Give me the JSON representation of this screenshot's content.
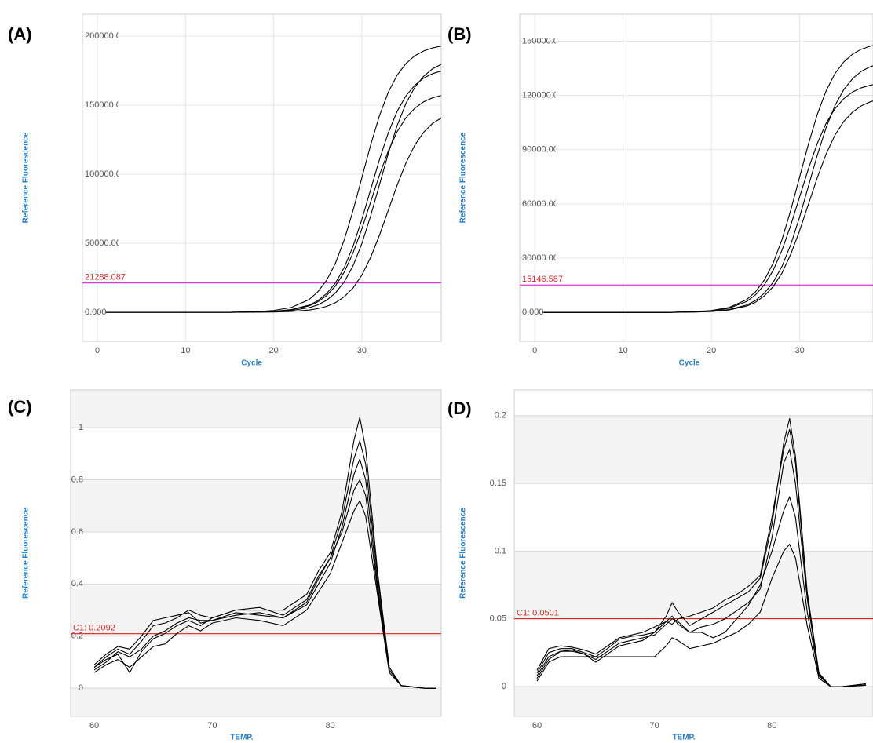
{
  "chart_data": [
    {
      "type": "line",
      "panel_label": "(A)",
      "y_label": "Reference Fluorescence",
      "x_label": "Cycle",
      "x": [
        1,
        5,
        10,
        15,
        18,
        20,
        22,
        24,
        25,
        26,
        27,
        28,
        29,
        30,
        31,
        32,
        33,
        34,
        35,
        36,
        37,
        38,
        39
      ],
      "series": [
        {
          "color": "#000000",
          "values": [
            0,
            0,
            0,
            0,
            500,
            1300,
            3500,
            9200,
            14800,
            23200,
            35500,
            52500,
            73700,
            97500,
            121300,
            142500,
            159500,
            171800,
            180200,
            185800,
            189300,
            191500,
            192900
          ]
        },
        {
          "color": "#000000",
          "values": [
            0,
            0,
            0,
            0,
            270,
            720,
            1960,
            5160,
            8370,
            13530,
            21180,
            32400,
            47880,
            67280,
            89000,
            110720,
            130120,
            145600,
            156820,
            164470,
            169630,
            172840,
            174800
          ]
        },
        {
          "color": "#000000",
          "values": [
            0,
            0,
            0,
            0,
            240,
            640,
            1760,
            4640,
            7520,
            12160,
            19040,
            29120,
            43040,
            60480,
            80000,
            99520,
            116960,
            130880,
            140960,
            147840,
            152480,
            155360,
            157120
          ]
        },
        {
          "color": "#000000",
          "values": [
            0,
            0,
            0,
            0,
            170,
            460,
            1240,
            3330,
            5370,
            8700,
            14060,
            22020,
            33670,
            49770,
            69930,
            92500,
            115070,
            135240,
            151330,
            162990,
            170940,
            176310,
            179640
          ]
        },
        {
          "color": "#000000",
          "values": [
            0,
            0,
            0,
            0,
            80,
            220,
            590,
            1630,
            2660,
            4290,
            6960,
            11250,
            17610,
            26940,
            39810,
            55940,
            74000,
            92060,
            108190,
            121060,
            130390,
            136750,
            140690
          ]
        }
      ],
      "xlim": [
        -1.7,
        39
      ],
      "xticks": [
        0,
        10,
        20,
        30
      ],
      "ylim": [
        -21000,
        216000
      ],
      "yticks": [
        {
          "value": 0,
          "label": "0.000"
        },
        {
          "value": 50000,
          "label": "50000.000"
        },
        {
          "value": 100000,
          "label": "100000.000"
        },
        {
          "value": 150000,
          "label": "150000.000"
        },
        {
          "value": 200000,
          "label": "200000.000"
        }
      ],
      "threshold": 21288.087,
      "threshold_color": "#d040d0",
      "grid": true,
      "bands": false
    },
    {
      "type": "line",
      "panel_label": "(B)",
      "y_label": "Reference Fluorescence",
      "x_label": "Cycle",
      "x": [
        1,
        5,
        10,
        15,
        18,
        20,
        22,
        24,
        25,
        26,
        27,
        28,
        29,
        30,
        31,
        32,
        33,
        34,
        35,
        36,
        37,
        38,
        39
      ],
      "series": [
        {
          "color": "#000000",
          "values": [
            0,
            0,
            0,
            0,
            380,
            1000,
            2700,
            7050,
            11400,
            17850,
            27300,
            40350,
            56700,
            75000,
            93300,
            109650,
            122700,
            132150,
            138600,
            142950,
            145650,
            147300,
            148350
          ]
        },
        {
          "color": "#000000",
          "values": [
            0,
            0,
            0,
            0,
            320,
            860,
            2300,
            6020,
            9730,
            15230,
            23300,
            34430,
            48380,
            64000,
            79620,
            93570,
            104700,
            112770,
            118270,
            121980,
            124290,
            125700,
            126590
          ]
        },
        {
          "color": "#000000",
          "values": [
            0,
            0,
            0,
            0,
            210,
            560,
            1540,
            4060,
            6580,
            10640,
            16660,
            25480,
            37660,
            52920,
            70000,
            87080,
            102340,
            114520,
            123340,
            129360,
            133420,
            135940,
            137480
          ]
        },
        {
          "color": "#000000",
          "values": [
            0,
            0,
            0,
            0,
            180,
            480,
            1320,
            3480,
            5640,
            9120,
            14280,
            21840,
            32280,
            45360,
            60000,
            74640,
            87720,
            98160,
            105720,
            110880,
            114360,
            116520,
            117840
          ]
        }
      ],
      "xlim": [
        -1.7,
        38.3
      ],
      "xticks": [
        0,
        10,
        20,
        30
      ],
      "ylim": [
        -16000,
        165000
      ],
      "yticks": [
        {
          "value": 0,
          "label": "0.000"
        },
        {
          "value": 30000,
          "label": "30000.000"
        },
        {
          "value": 60000,
          "label": "60000.000"
        },
        {
          "value": 90000,
          "label": "90000.000"
        },
        {
          "value": 120000,
          "label": "120000.000"
        },
        {
          "value": 150000,
          "label": "150000.000"
        }
      ],
      "threshold": 15146.587,
      "threshold_color": "#d040d0",
      "grid": true,
      "bands": false
    },
    {
      "type": "line",
      "panel_label": "(C)",
      "y_label": "Reference Fluorescence",
      "x_label": "TEMP.",
      "x": [
        60,
        61,
        62,
        63,
        64,
        65,
        66,
        67,
        68,
        69,
        70,
        72,
        74,
        76,
        78,
        79,
        80,
        81,
        82,
        82.5,
        83,
        84,
        85,
        86,
        88,
        89
      ],
      "series": [
        {
          "color": "#000000",
          "values": [
            0.08,
            0.12,
            0.15,
            0.13,
            0.18,
            0.24,
            0.25,
            0.27,
            0.3,
            0.28,
            0.27,
            0.3,
            0.3,
            0.3,
            0.36,
            0.45,
            0.52,
            0.68,
            0.95,
            1.04,
            0.92,
            0.45,
            0.08,
            0.01,
            0,
            0
          ]
        },
        {
          "color": "#000000",
          "values": [
            0.07,
            0.1,
            0.14,
            0.12,
            0.15,
            0.2,
            0.22,
            0.25,
            0.27,
            0.26,
            0.26,
            0.28,
            0.29,
            0.27,
            0.32,
            0.4,
            0.48,
            0.62,
            0.82,
            0.88,
            0.8,
            0.4,
            0.07,
            0.01,
            0,
            0
          ]
        },
        {
          "color": "#000000",
          "values": [
            0.06,
            0.09,
            0.11,
            0.08,
            0.12,
            0.16,
            0.17,
            0.21,
            0.24,
            0.22,
            0.25,
            0.27,
            0.26,
            0.24,
            0.3,
            0.37,
            0.44,
            0.56,
            0.68,
            0.72,
            0.66,
            0.36,
            0.06,
            0.01,
            0,
            0
          ]
        },
        {
          "color": "#000000",
          "values": [
            0.09,
            0.13,
            0.16,
            0.15,
            0.2,
            0.26,
            0.27,
            0.28,
            0.29,
            0.25,
            0.26,
            0.29,
            0.28,
            0.27,
            0.33,
            0.42,
            0.5,
            0.6,
            0.76,
            0.8,
            0.74,
            0.38,
            0.07,
            0.01,
            0,
            0
          ]
        },
        {
          "color": "#000000",
          "values": [
            0.08,
            0.11,
            0.13,
            0.06,
            0.14,
            0.19,
            0.21,
            0.24,
            0.26,
            0.24,
            0.27,
            0.3,
            0.31,
            0.28,
            0.34,
            0.43,
            0.5,
            0.65,
            0.88,
            0.95,
            0.86,
            0.43,
            0.08,
            0.01,
            0,
            0
          ]
        }
      ],
      "xlim": [
        58,
        89.4
      ],
      "xticks": [
        60,
        70,
        80
      ],
      "ylim": [
        -0.108,
        1.145
      ],
      "yticks": [
        0,
        0.2,
        0.4,
        0.6,
        0.8,
        1
      ],
      "threshold": {
        "value": 0.2092,
        "label": "C1: 0.2092"
      },
      "threshold_color": "#e02020",
      "grid": true,
      "bands": true
    },
    {
      "type": "line",
      "panel_label": "(D)",
      "y_label": "Reference Fluorescence",
      "x_label": "TEMP.",
      "x": [
        60,
        61,
        62,
        63,
        64,
        65,
        66,
        67,
        68,
        69,
        70,
        71,
        71.5,
        72,
        73,
        74,
        75,
        76,
        77,
        78,
        79,
        80,
        81,
        81.5,
        82,
        83,
        84,
        85,
        86,
        88
      ],
      "series": [
        {
          "color": "#000000",
          "values": [
            0.01,
            0.025,
            0.028,
            0.028,
            0.025,
            0.022,
            0.028,
            0.035,
            0.037,
            0.038,
            0.04,
            0.052,
            0.062,
            0.055,
            0.045,
            0.05,
            0.055,
            0.06,
            0.065,
            0.07,
            0.08,
            0.12,
            0.18,
            0.198,
            0.17,
            0.07,
            0.01,
            0,
            0,
            0.002
          ]
        },
        {
          "color": "#000000",
          "values": [
            0.008,
            0.022,
            0.026,
            0.027,
            0.024,
            0.02,
            0.026,
            0.032,
            0.034,
            0.036,
            0.038,
            0.046,
            0.05,
            0.048,
            0.04,
            0.044,
            0.046,
            0.05,
            0.056,
            0.062,
            0.072,
            0.11,
            0.165,
            0.175,
            0.15,
            0.065,
            0.008,
            0,
            0,
            0.001
          ]
        },
        {
          "color": "#000000",
          "values": [
            0.004,
            0.018,
            0.022,
            0.022,
            0.022,
            0.022,
            0.022,
            0.022,
            0.022,
            0.022,
            0.022,
            0.03,
            0.036,
            0.034,
            0.028,
            0.03,
            0.032,
            0.036,
            0.04,
            0.046,
            0.055,
            0.08,
            0.1,
            0.105,
            0.095,
            0.045,
            0.006,
            0,
            0,
            0.001
          ]
        },
        {
          "color": "#000000",
          "values": [
            0.006,
            0.02,
            0.026,
            0.026,
            0.024,
            0.018,
            0.024,
            0.03,
            0.032,
            0.034,
            0.04,
            0.048,
            0.052,
            0.046,
            0.04,
            0.04,
            0.036,
            0.04,
            0.05,
            0.06,
            0.075,
            0.1,
            0.13,
            0.14,
            0.125,
            0.055,
            0.008,
            0,
            0,
            0.001
          ]
        },
        {
          "color": "#000000",
          "values": [
            0.012,
            0.028,
            0.03,
            0.029,
            0.027,
            0.024,
            0.03,
            0.036,
            0.038,
            0.04,
            0.044,
            0.048,
            0.046,
            0.05,
            0.052,
            0.055,
            0.058,
            0.064,
            0.068,
            0.074,
            0.082,
            0.125,
            0.175,
            0.19,
            0.165,
            0.068,
            0.009,
            0,
            0,
            0.002
          ]
        }
      ],
      "xlim": [
        58.06,
        88.6
      ],
      "xticks": [
        60,
        70,
        80
      ],
      "ylim": [
        -0.022,
        0.219
      ],
      "yticks": [
        0,
        0.05,
        0.1,
        0.15,
        0.2
      ],
      "threshold": {
        "value": 0.0501,
        "label": "C1: 0.0501"
      },
      "threshold_color": "#e02020",
      "grid": true,
      "bands": true
    }
  ]
}
